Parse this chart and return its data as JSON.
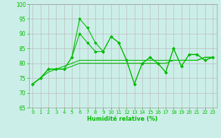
{
  "x": [
    0,
    1,
    2,
    3,
    4,
    5,
    6,
    7,
    8,
    9,
    10,
    11,
    12,
    13,
    14,
    15,
    16,
    17,
    18,
    19,
    20,
    21,
    22,
    23
  ],
  "line1": [
    73,
    75,
    78,
    78,
    78,
    82,
    90,
    87,
    84,
    84,
    89,
    87,
    81,
    73,
    80,
    82,
    80,
    77,
    85,
    79,
    83,
    83,
    81,
    82
  ],
  "line2": [
    73,
    75,
    78,
    78,
    78,
    82,
    95,
    92,
    87,
    84,
    89,
    87,
    81,
    73,
    80,
    82,
    80,
    77,
    85,
    79,
    83,
    83,
    81,
    82
  ],
  "line3": [
    73,
    75,
    78,
    78,
    79,
    80,
    81,
    81,
    81,
    81,
    81,
    81,
    81,
    81,
    81,
    81,
    81,
    81,
    81,
    81,
    81,
    81,
    82,
    82
  ],
  "line4": [
    73,
    75,
    77,
    78,
    78,
    79,
    80,
    80,
    80,
    80,
    80,
    80,
    80,
    80,
    80,
    80,
    80,
    80,
    81,
    81,
    81,
    81,
    82,
    82
  ],
  "ylim": [
    65,
    100
  ],
  "yticks": [
    65,
    70,
    75,
    80,
    85,
    90,
    95,
    100
  ],
  "xticks": [
    0,
    1,
    2,
    3,
    4,
    5,
    6,
    7,
    8,
    9,
    10,
    11,
    12,
    13,
    14,
    15,
    16,
    17,
    18,
    19,
    20,
    21,
    22,
    23
  ],
  "xlabel": "Humidité relative (%)",
  "line_color": "#00bb00",
  "bg_color": "#cceee8",
  "grid_color": "#bbbbbb",
  "marker": "D",
  "marker_size": 2.5,
  "figsize": [
    3.2,
    2.0
  ],
  "dpi": 100
}
